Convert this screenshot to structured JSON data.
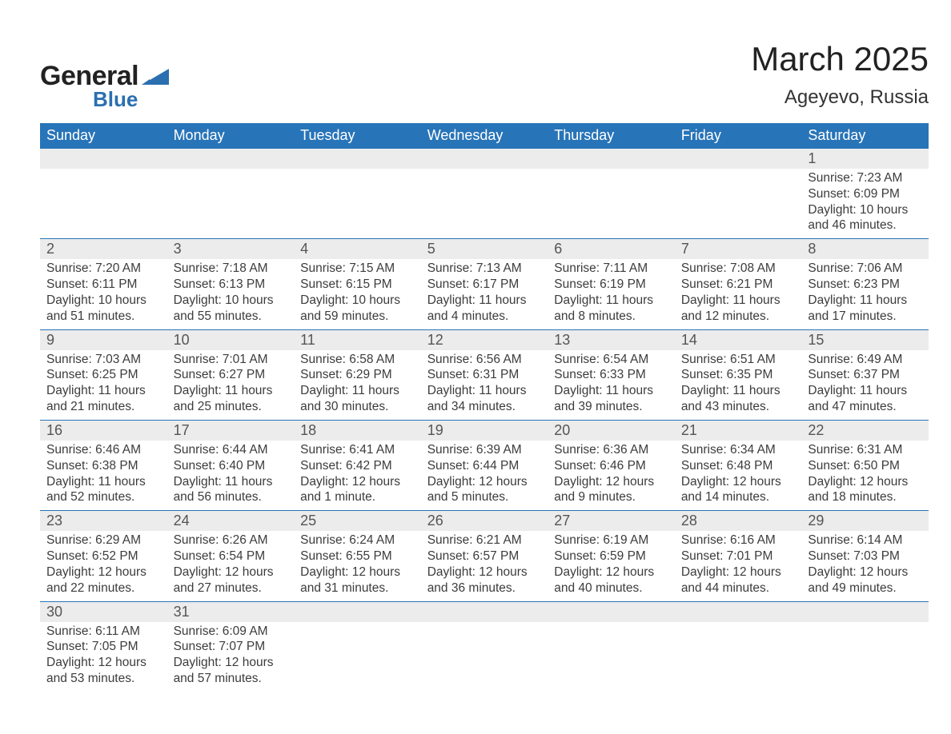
{
  "brand": {
    "word1": "General",
    "word2": "Blue",
    "logo_color": "#2b6fb0"
  },
  "title": "March 2025",
  "location": "Ageyevo, Russia",
  "colors": {
    "header_bg": "#2874b8",
    "header_text": "#ffffff",
    "daynum_bg": "#ececec",
    "row_border": "#2874b8",
    "text": "#3a3a3a"
  },
  "typography": {
    "title_fontsize": 42,
    "location_fontsize": 24,
    "header_fontsize": 18,
    "daynum_fontsize": 18,
    "body_fontsize": 15.5
  },
  "weekdays": [
    "Sunday",
    "Monday",
    "Tuesday",
    "Wednesday",
    "Thursday",
    "Friday",
    "Saturday"
  ],
  "weeks": [
    [
      {
        "n": "",
        "sr": "",
        "ss": "",
        "dl": ""
      },
      {
        "n": "",
        "sr": "",
        "ss": "",
        "dl": ""
      },
      {
        "n": "",
        "sr": "",
        "ss": "",
        "dl": ""
      },
      {
        "n": "",
        "sr": "",
        "ss": "",
        "dl": ""
      },
      {
        "n": "",
        "sr": "",
        "ss": "",
        "dl": ""
      },
      {
        "n": "",
        "sr": "",
        "ss": "",
        "dl": ""
      },
      {
        "n": "1",
        "sr": "Sunrise: 7:23 AM",
        "ss": "Sunset: 6:09 PM",
        "dl": "Daylight: 10 hours and 46 minutes."
      }
    ],
    [
      {
        "n": "2",
        "sr": "Sunrise: 7:20 AM",
        "ss": "Sunset: 6:11 PM",
        "dl": "Daylight: 10 hours and 51 minutes."
      },
      {
        "n": "3",
        "sr": "Sunrise: 7:18 AM",
        "ss": "Sunset: 6:13 PM",
        "dl": "Daylight: 10 hours and 55 minutes."
      },
      {
        "n": "4",
        "sr": "Sunrise: 7:15 AM",
        "ss": "Sunset: 6:15 PM",
        "dl": "Daylight: 10 hours and 59 minutes."
      },
      {
        "n": "5",
        "sr": "Sunrise: 7:13 AM",
        "ss": "Sunset: 6:17 PM",
        "dl": "Daylight: 11 hours and 4 minutes."
      },
      {
        "n": "6",
        "sr": "Sunrise: 7:11 AM",
        "ss": "Sunset: 6:19 PM",
        "dl": "Daylight: 11 hours and 8 minutes."
      },
      {
        "n": "7",
        "sr": "Sunrise: 7:08 AM",
        "ss": "Sunset: 6:21 PM",
        "dl": "Daylight: 11 hours and 12 minutes."
      },
      {
        "n": "8",
        "sr": "Sunrise: 7:06 AM",
        "ss": "Sunset: 6:23 PM",
        "dl": "Daylight: 11 hours and 17 minutes."
      }
    ],
    [
      {
        "n": "9",
        "sr": "Sunrise: 7:03 AM",
        "ss": "Sunset: 6:25 PM",
        "dl": "Daylight: 11 hours and 21 minutes."
      },
      {
        "n": "10",
        "sr": "Sunrise: 7:01 AM",
        "ss": "Sunset: 6:27 PM",
        "dl": "Daylight: 11 hours and 25 minutes."
      },
      {
        "n": "11",
        "sr": "Sunrise: 6:58 AM",
        "ss": "Sunset: 6:29 PM",
        "dl": "Daylight: 11 hours and 30 minutes."
      },
      {
        "n": "12",
        "sr": "Sunrise: 6:56 AM",
        "ss": "Sunset: 6:31 PM",
        "dl": "Daylight: 11 hours and 34 minutes."
      },
      {
        "n": "13",
        "sr": "Sunrise: 6:54 AM",
        "ss": "Sunset: 6:33 PM",
        "dl": "Daylight: 11 hours and 39 minutes."
      },
      {
        "n": "14",
        "sr": "Sunrise: 6:51 AM",
        "ss": "Sunset: 6:35 PM",
        "dl": "Daylight: 11 hours and 43 minutes."
      },
      {
        "n": "15",
        "sr": "Sunrise: 6:49 AM",
        "ss": "Sunset: 6:37 PM",
        "dl": "Daylight: 11 hours and 47 minutes."
      }
    ],
    [
      {
        "n": "16",
        "sr": "Sunrise: 6:46 AM",
        "ss": "Sunset: 6:38 PM",
        "dl": "Daylight: 11 hours and 52 minutes."
      },
      {
        "n": "17",
        "sr": "Sunrise: 6:44 AM",
        "ss": "Sunset: 6:40 PM",
        "dl": "Daylight: 11 hours and 56 minutes."
      },
      {
        "n": "18",
        "sr": "Sunrise: 6:41 AM",
        "ss": "Sunset: 6:42 PM",
        "dl": "Daylight: 12 hours and 1 minute."
      },
      {
        "n": "19",
        "sr": "Sunrise: 6:39 AM",
        "ss": "Sunset: 6:44 PM",
        "dl": "Daylight: 12 hours and 5 minutes."
      },
      {
        "n": "20",
        "sr": "Sunrise: 6:36 AM",
        "ss": "Sunset: 6:46 PM",
        "dl": "Daylight: 12 hours and 9 minutes."
      },
      {
        "n": "21",
        "sr": "Sunrise: 6:34 AM",
        "ss": "Sunset: 6:48 PM",
        "dl": "Daylight: 12 hours and 14 minutes."
      },
      {
        "n": "22",
        "sr": "Sunrise: 6:31 AM",
        "ss": "Sunset: 6:50 PM",
        "dl": "Daylight: 12 hours and 18 minutes."
      }
    ],
    [
      {
        "n": "23",
        "sr": "Sunrise: 6:29 AM",
        "ss": "Sunset: 6:52 PM",
        "dl": "Daylight: 12 hours and 22 minutes."
      },
      {
        "n": "24",
        "sr": "Sunrise: 6:26 AM",
        "ss": "Sunset: 6:54 PM",
        "dl": "Daylight: 12 hours and 27 minutes."
      },
      {
        "n": "25",
        "sr": "Sunrise: 6:24 AM",
        "ss": "Sunset: 6:55 PM",
        "dl": "Daylight: 12 hours and 31 minutes."
      },
      {
        "n": "26",
        "sr": "Sunrise: 6:21 AM",
        "ss": "Sunset: 6:57 PM",
        "dl": "Daylight: 12 hours and 36 minutes."
      },
      {
        "n": "27",
        "sr": "Sunrise: 6:19 AM",
        "ss": "Sunset: 6:59 PM",
        "dl": "Daylight: 12 hours and 40 minutes."
      },
      {
        "n": "28",
        "sr": "Sunrise: 6:16 AM",
        "ss": "Sunset: 7:01 PM",
        "dl": "Daylight: 12 hours and 44 minutes."
      },
      {
        "n": "29",
        "sr": "Sunrise: 6:14 AM",
        "ss": "Sunset: 7:03 PM",
        "dl": "Daylight: 12 hours and 49 minutes."
      }
    ],
    [
      {
        "n": "30",
        "sr": "Sunrise: 6:11 AM",
        "ss": "Sunset: 7:05 PM",
        "dl": "Daylight: 12 hours and 53 minutes."
      },
      {
        "n": "31",
        "sr": "Sunrise: 6:09 AM",
        "ss": "Sunset: 7:07 PM",
        "dl": "Daylight: 12 hours and 57 minutes."
      },
      {
        "n": "",
        "sr": "",
        "ss": "",
        "dl": ""
      },
      {
        "n": "",
        "sr": "",
        "ss": "",
        "dl": ""
      },
      {
        "n": "",
        "sr": "",
        "ss": "",
        "dl": ""
      },
      {
        "n": "",
        "sr": "",
        "ss": "",
        "dl": ""
      },
      {
        "n": "",
        "sr": "",
        "ss": "",
        "dl": ""
      }
    ]
  ]
}
